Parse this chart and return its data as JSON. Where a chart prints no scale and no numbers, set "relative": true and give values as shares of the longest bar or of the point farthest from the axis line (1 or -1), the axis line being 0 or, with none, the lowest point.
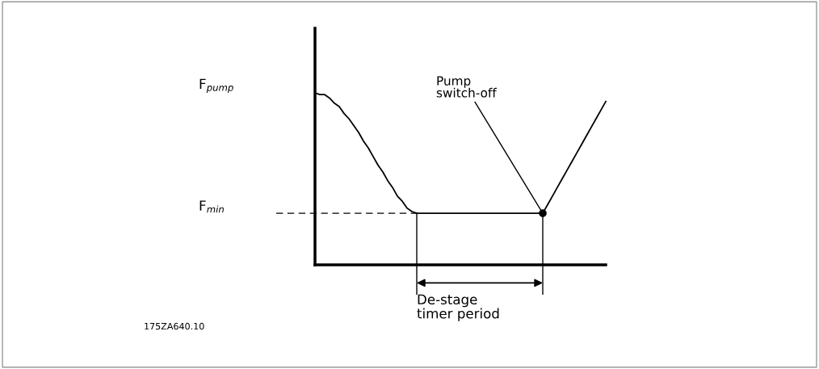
{
  "chart_data": {
    "type": "line",
    "relative": true,
    "categories": [
      null,
      null,
      null,
      null,
      null,
      null,
      null,
      null,
      null,
      null,
      null,
      null,
      null,
      null,
      null,
      null,
      null,
      null,
      null,
      null,
      null,
      null,
      null,
      null,
      null,
      null,
      null,
      null,
      null,
      null,
      null,
      null,
      null,
      null,
      null,
      null,
      null,
      null,
      null,
      null,
      null,
      null,
      null,
      null,
      null,
      null,
      null,
      null,
      null,
      null,
      null,
      null,
      null,
      null,
      null,
      null,
      null,
      null,
      null,
      null,
      null
    ],
    "series": [
      {
        "color": "#000000",
        "values": [
          1.0,
          0.99,
          0.99,
          0.97,
          0.94,
          0.92,
          0.88,
          0.85,
          0.81,
          0.77,
          0.72,
          0.68,
          0.63,
          0.58,
          0.54,
          0.49,
          0.45,
          0.4,
          0.37,
          0.33,
          0.31,
          0.3,
          0.3,
          0.3,
          0.3,
          0.3,
          0.3,
          0.3,
          0.3,
          0.3,
          0.3,
          0.3,
          0.3,
          0.3,
          0.3,
          0.3,
          0.3,
          0.3,
          0.3,
          0.3,
          0.3,
          0.3,
          0.3,
          0.3,
          0.3,
          0.3,
          0.3,
          0.3,
          0.35,
          0.4,
          0.45,
          0.5,
          0.55,
          0.6,
          0.65,
          0.7,
          0.75,
          0.8,
          0.85,
          0.9,
          0.95
        ]
      }
    ],
    "ref_lines": [
      {
        "axis": "y",
        "value": 0.3,
        "label": "F$_{min}$",
        "color": "#000000",
        "line_style": "dashed"
      }
    ],
    "annotations": [
      "F$_{pump}$",
      "Pump\nswitch-off",
      "De-stage\ntimer period",
      "175ZA640.10"
    ],
    "line_style": "solid"
  }
}
